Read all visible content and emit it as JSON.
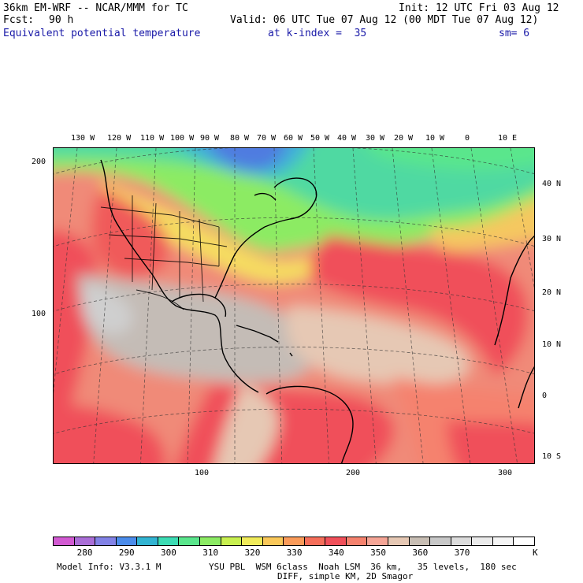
{
  "header": {
    "model": "36km EM-WRF -- NCAR/MMM for TC",
    "init": "Init: 12 UTC Fri 03 Aug 12",
    "fcst_label": "Fcst:",
    "fcst_value": "90 h",
    "valid": "Valid: 06 UTC Tue 07 Aug 12 (00 MDT Tue 07 Aug 12)",
    "field": "Equivalent potential temperature",
    "level": "at k-index =  35",
    "smoothing": "sm= 6"
  },
  "map": {
    "top_lon_labels": [
      "130 W",
      "120 W",
      "110 W",
      "100 W",
      "90 W",
      "80 W",
      "70 W",
      "60 W",
      "50 W",
      "40 W",
      "30 W",
      "20 W",
      "10 W",
      "0",
      "10 E"
    ],
    "right_lat_labels": [
      "40 N",
      "30 N",
      "20 N",
      "10 N",
      "0",
      "10 S"
    ],
    "left_grid_labels": [
      "200",
      "100"
    ],
    "bottom_grid_labels": [
      "100",
      "200",
      "300"
    ]
  },
  "colorbar": {
    "labels": [
      "280",
      "290",
      "300",
      "310",
      "320",
      "330",
      "340",
      "350",
      "360",
      "370"
    ],
    "unit": "K",
    "colors": [
      "#d25ad2",
      "#aa6ed7",
      "#8282e6",
      "#4b8ceb",
      "#32b4d2",
      "#3cdcb4",
      "#5ae68c",
      "#8ceb64",
      "#c8f050",
      "#f0eb5a",
      "#fac85a",
      "#fa9b5a",
      "#f56e5a",
      "#f0505a",
      "#f5826e",
      "#f5a596",
      "#e6c8b4",
      "#c8beb4",
      "#c8c8c8",
      "#dcdcdc",
      "#ebebeb",
      "#f5f5f5",
      "#ffffff"
    ]
  },
  "footer": {
    "line1a": "Model Info: V3.3.1 M",
    "line1b": "YSU PBL  WSM 6class  Noah LSM  36 km,   35 levels,  180 sec",
    "line2": "DIFF, simple KM, 2D Smagor"
  }
}
